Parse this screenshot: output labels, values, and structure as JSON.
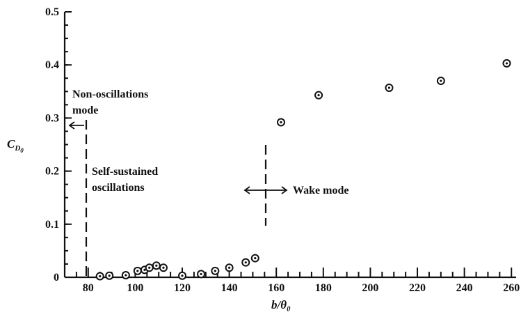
{
  "chart_data": {
    "type": "scatter",
    "title": "",
    "xlabel": "b/θ₀",
    "ylabel": "C_D₀",
    "ylabel_main": "C",
    "ylabel_sub": "D",
    "ylabel_subsub": "0",
    "xlim": [
      70,
      262
    ],
    "ylim": [
      0,
      0.5
    ],
    "x_ticks": [
      80,
      100,
      120,
      140,
      160,
      180,
      200,
      220,
      240,
      260
    ],
    "y_ticks": [
      0,
      0.1,
      0.2,
      0.3,
      0.4,
      0.5
    ],
    "x_tick_labels": [
      "80",
      "100",
      "120",
      "140",
      "160",
      "180",
      "200",
      "220",
      "240",
      "260"
    ],
    "y_tick_labels": [
      "0",
      "0.1",
      "0.2",
      "0.3",
      "0.4",
      "0.5"
    ],
    "grid": false,
    "series": [
      {
        "x": [
          85,
          89,
          96,
          101,
          104,
          106,
          109,
          112,
          120,
          128,
          134,
          140,
          147,
          151,
          162,
          178,
          208,
          230,
          258
        ],
        "y": [
          0.002,
          0.003,
          0.004,
          0.012,
          0.014,
          0.018,
          0.022,
          0.018,
          0.003,
          0.006,
          0.012,
          0.018,
          0.028,
          0.036,
          0.292,
          0.343,
          0.357,
          0.37,
          0.403
        ]
      }
    ],
    "annotations": [
      {
        "text_lines": [
          "Non-oscillations",
          "mode"
        ],
        "boundary_x": 83
      },
      {
        "text_lines": [
          "Self-sustained",
          "oscillations"
        ]
      },
      {
        "text": "Wake mode",
        "boundary_x": 159
      }
    ]
  }
}
